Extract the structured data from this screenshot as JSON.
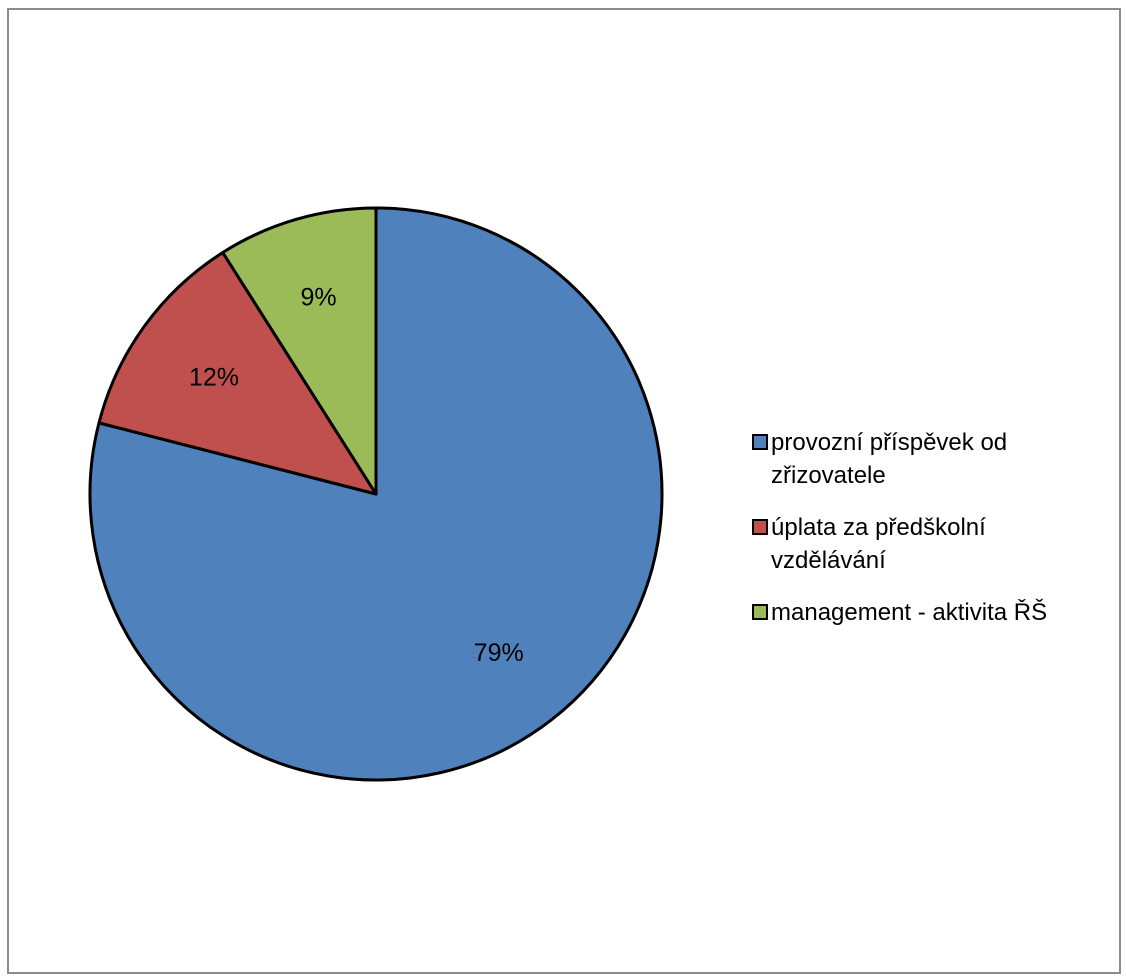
{
  "chart_data": {
    "type": "pie",
    "title": "",
    "slices": [
      {
        "label": "provozní příspěvek od zřizovatele",
        "value": 79,
        "display": "79%",
        "color": "#4f81bd"
      },
      {
        "label": "úplata za předškolní vzdělávání",
        "value": 12,
        "display": "12%",
        "color": "#c0504d"
      },
      {
        "label": "management - aktivita ŘŠ",
        "value": 9,
        "display": "9%",
        "color": "#9bbb59"
      }
    ],
    "start_angle": "12 o'clock",
    "direction": "clockwise",
    "legend_position": "right"
  }
}
